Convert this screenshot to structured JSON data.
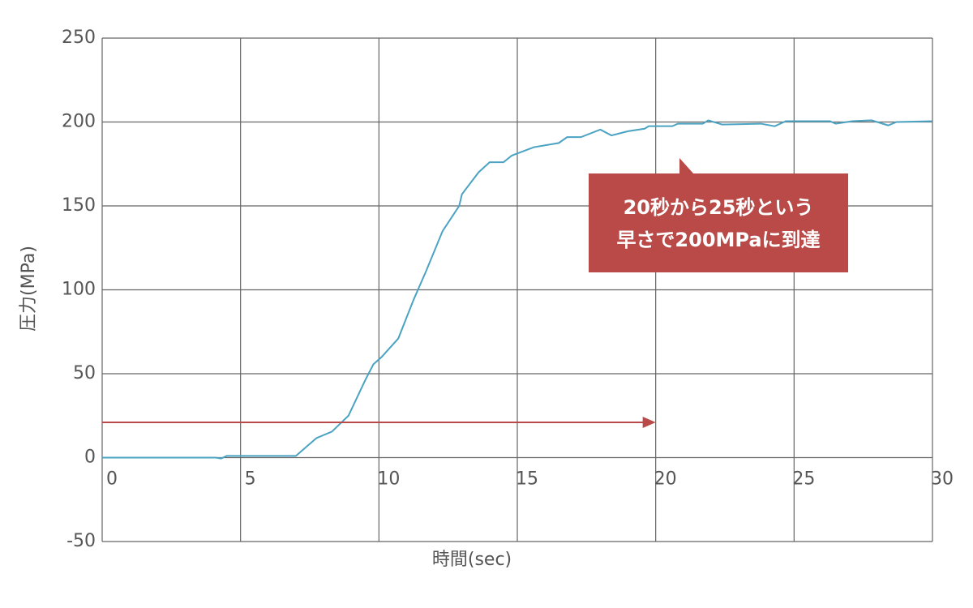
{
  "chart_data": {
    "type": "line",
    "xlabel": "時間(sec)",
    "ylabel": "圧力(MPa)",
    "xlim": [
      0,
      30
    ],
    "xticks": [
      0,
      5,
      10,
      15,
      20,
      25,
      30
    ],
    "ylim": [
      -50,
      250
    ],
    "yticks": [
      -50,
      0,
      50,
      100,
      150,
      200,
      250
    ],
    "grid": true,
    "series": [
      {
        "color": "#4aa3c2",
        "x": [
          0,
          4.1,
          4.3,
          4.5,
          7.0,
          7.74,
          8.3,
          8.9,
          9.5,
          9.8,
          10.1,
          10.7,
          11.25,
          11.7,
          12.3,
          12.9,
          13.0,
          13.6,
          14.0,
          14.5,
          14.8,
          15.6,
          16.5,
          16.8,
          17.3,
          18.0,
          18.4,
          19.0,
          19.6,
          19.75,
          20.6,
          20.8,
          21.7,
          21.9,
          22.4,
          23.8,
          24.3,
          24.7,
          26.3,
          26.5,
          27.1,
          27.8,
          28.4,
          28.7,
          30
        ],
        "values": [
          0,
          0,
          -0.5,
          1,
          1,
          11.6,
          15.5,
          25,
          46,
          55.6,
          60,
          71,
          94,
          111,
          135,
          150,
          157,
          170,
          176,
          176,
          180,
          185,
          187.5,
          191,
          191,
          195.5,
          192,
          194.5,
          196,
          197.5,
          197.5,
          199,
          199,
          201,
          198.5,
          199,
          197.5,
          200.5,
          200.5,
          199,
          200.5,
          201,
          198,
          200,
          200.5
        ]
      }
    ],
    "arrow": {
      "x": [
        0,
        20
      ],
      "y": 21,
      "color": "#b94a48"
    },
    "annotation": {
      "lines": [
        "20秒から25秒という",
        "早さで200MPaに到達"
      ],
      "color": "#b94a48"
    }
  }
}
